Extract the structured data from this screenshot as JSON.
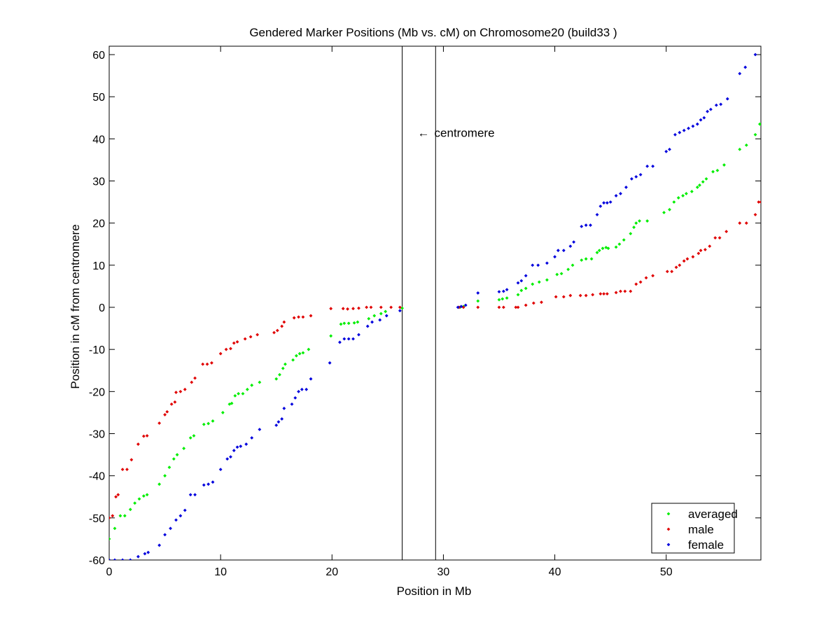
{
  "chart_data": {
    "type": "scatter",
    "title": "Gendered Marker Positions (Mb vs. cM) on Chromosome20 (build33 )",
    "xlabel": "Position in Mb",
    "ylabel": "Position in cM from centromere",
    "xlim": [
      0,
      58.5
    ],
    "ylim": [
      -60,
      62
    ],
    "xticks": [
      0,
      10,
      20,
      30,
      40,
      50
    ],
    "yticks": [
      -60,
      -50,
      -40,
      -30,
      -20,
      -10,
      0,
      10,
      20,
      30,
      40,
      50,
      60
    ],
    "grid": false,
    "legend_position": "bottom-right",
    "centromere": {
      "label": "centromere",
      "arrow": "←",
      "bounds_mb": [
        26.3,
        29.3
      ],
      "label_y_cm": 41.5
    },
    "series": [
      {
        "name": "averaged",
        "color": "#00ee00",
        "points": [
          [
            0.0,
            -55.0
          ],
          [
            0.5,
            -52.5
          ],
          [
            1.0,
            -49.5
          ],
          [
            1.4,
            -49.5
          ],
          [
            1.9,
            -48.0
          ],
          [
            2.3,
            -46.5
          ],
          [
            2.7,
            -45.5
          ],
          [
            3.1,
            -44.8
          ],
          [
            3.4,
            -44.5
          ],
          [
            4.5,
            -42.0
          ],
          [
            5.0,
            -40.0
          ],
          [
            5.4,
            -38.0
          ],
          [
            5.8,
            -36.0
          ],
          [
            6.1,
            -35.0
          ],
          [
            6.7,
            -33.5
          ],
          [
            7.3,
            -31.0
          ],
          [
            7.6,
            -30.5
          ],
          [
            8.5,
            -27.8
          ],
          [
            8.9,
            -27.6
          ],
          [
            9.3,
            -27.0
          ],
          [
            10.2,
            -25.0
          ],
          [
            10.8,
            -23.0
          ],
          [
            11.0,
            -22.8
          ],
          [
            11.3,
            -21.0
          ],
          [
            11.6,
            -20.5
          ],
          [
            12.0,
            -20.5
          ],
          [
            12.4,
            -19.5
          ],
          [
            12.8,
            -18.5
          ],
          [
            13.5,
            -17.8
          ],
          [
            15.0,
            -17.0
          ],
          [
            15.3,
            -16.0
          ],
          [
            15.6,
            -14.5
          ],
          [
            15.8,
            -13.5
          ],
          [
            16.5,
            -12.5
          ],
          [
            16.8,
            -11.5
          ],
          [
            17.1,
            -11.0
          ],
          [
            17.4,
            -10.8
          ],
          [
            17.9,
            -10.0
          ],
          [
            19.9,
            -6.8
          ],
          [
            20.8,
            -4.0
          ],
          [
            21.1,
            -3.8
          ],
          [
            21.5,
            -3.8
          ],
          [
            22.0,
            -3.7
          ],
          [
            22.3,
            -3.5
          ],
          [
            23.3,
            -2.7
          ],
          [
            23.8,
            -2.0
          ],
          [
            24.4,
            -1.5
          ],
          [
            24.8,
            -1.0
          ],
          [
            26.3,
            -0.2
          ],
          [
            31.5,
            0.0
          ],
          [
            31.8,
            0.2
          ],
          [
            33.1,
            1.5
          ],
          [
            35.0,
            1.8
          ],
          [
            35.3,
            2.0
          ],
          [
            35.7,
            2.2
          ],
          [
            36.7,
            3.0
          ],
          [
            37.0,
            4.0
          ],
          [
            37.4,
            4.5
          ],
          [
            38.0,
            5.5
          ],
          [
            38.6,
            6.0
          ],
          [
            39.3,
            6.5
          ],
          [
            40.2,
            7.8
          ],
          [
            40.6,
            8.0
          ],
          [
            41.2,
            9.0
          ],
          [
            41.6,
            10.0
          ],
          [
            42.4,
            11.2
          ],
          [
            42.8,
            11.5
          ],
          [
            43.3,
            11.5
          ],
          [
            43.8,
            13.0
          ],
          [
            44.0,
            13.5
          ],
          [
            44.3,
            14.0
          ],
          [
            44.6,
            14.2
          ],
          [
            44.8,
            14.0
          ],
          [
            45.5,
            14.3
          ],
          [
            45.8,
            15.0
          ],
          [
            46.2,
            16.0
          ],
          [
            46.8,
            17.5
          ],
          [
            47.1,
            19.0
          ],
          [
            47.3,
            20.0
          ],
          [
            47.6,
            20.5
          ],
          [
            48.3,
            20.5
          ],
          [
            49.8,
            22.5
          ],
          [
            50.3,
            23.2
          ],
          [
            50.7,
            25.0
          ],
          [
            51.1,
            26.0
          ],
          [
            51.5,
            26.5
          ],
          [
            51.8,
            27.0
          ],
          [
            52.3,
            27.5
          ],
          [
            52.8,
            28.5
          ],
          [
            53.0,
            29.0
          ],
          [
            53.3,
            29.8
          ],
          [
            53.6,
            30.5
          ],
          [
            54.2,
            32.2
          ],
          [
            54.6,
            32.5
          ],
          [
            55.2,
            33.8
          ],
          [
            56.6,
            37.5
          ],
          [
            57.2,
            38.5
          ],
          [
            58.0,
            41.0
          ],
          [
            58.4,
            43.5
          ],
          [
            58.5,
            43.5
          ]
        ]
      },
      {
        "name": "male",
        "color": "#e00000",
        "points": [
          [
            0.0,
            -50.0
          ],
          [
            0.3,
            -49.5
          ],
          [
            0.6,
            -45.0
          ],
          [
            0.8,
            -44.5
          ],
          [
            1.2,
            -38.5
          ],
          [
            1.6,
            -38.5
          ],
          [
            2.0,
            -36.2
          ],
          [
            2.6,
            -32.5
          ],
          [
            3.1,
            -30.6
          ],
          [
            3.4,
            -30.5
          ],
          [
            4.5,
            -27.5
          ],
          [
            5.0,
            -25.5
          ],
          [
            5.2,
            -24.8
          ],
          [
            5.6,
            -23.0
          ],
          [
            5.9,
            -22.5
          ],
          [
            6.0,
            -20.2
          ],
          [
            6.4,
            -20.0
          ],
          [
            6.8,
            -19.5
          ],
          [
            7.4,
            -17.8
          ],
          [
            7.7,
            -16.8
          ],
          [
            8.4,
            -13.5
          ],
          [
            8.8,
            -13.5
          ],
          [
            9.2,
            -13.2
          ],
          [
            10.0,
            -11.0
          ],
          [
            10.5,
            -10.0
          ],
          [
            10.9,
            -9.8
          ],
          [
            11.2,
            -8.5
          ],
          [
            11.5,
            -8.2
          ],
          [
            12.2,
            -7.5
          ],
          [
            12.7,
            -7.0
          ],
          [
            13.3,
            -6.5
          ],
          [
            14.8,
            -6.0
          ],
          [
            15.1,
            -5.5
          ],
          [
            15.5,
            -4.5
          ],
          [
            15.7,
            -3.5
          ],
          [
            16.6,
            -2.5
          ],
          [
            17.0,
            -2.3
          ],
          [
            17.4,
            -2.3
          ],
          [
            18.1,
            -2.0
          ],
          [
            19.9,
            -0.3
          ],
          [
            21.0,
            -0.3
          ],
          [
            21.4,
            -0.4
          ],
          [
            21.9,
            -0.3
          ],
          [
            22.4,
            -0.2
          ],
          [
            23.1,
            0.0
          ],
          [
            23.5,
            0.0
          ],
          [
            24.4,
            0.0
          ],
          [
            25.3,
            0.0
          ],
          [
            26.1,
            0.0
          ],
          [
            31.4,
            0.0
          ],
          [
            31.8,
            0.0
          ],
          [
            33.1,
            0.0
          ],
          [
            35.0,
            0.0
          ],
          [
            35.4,
            0.0
          ],
          [
            36.5,
            0.0
          ],
          [
            36.7,
            0.0
          ],
          [
            37.4,
            0.5
          ],
          [
            38.1,
            1.0
          ],
          [
            38.8,
            1.2
          ],
          [
            40.1,
            2.5
          ],
          [
            40.8,
            2.5
          ],
          [
            41.4,
            2.8
          ],
          [
            42.3,
            2.8
          ],
          [
            42.8,
            2.8
          ],
          [
            43.4,
            3.0
          ],
          [
            44.1,
            3.2
          ],
          [
            44.4,
            3.2
          ],
          [
            44.7,
            3.2
          ],
          [
            45.5,
            3.5
          ],
          [
            45.9,
            3.8
          ],
          [
            46.3,
            3.8
          ],
          [
            46.8,
            3.8
          ],
          [
            47.3,
            5.5
          ],
          [
            47.7,
            6.0
          ],
          [
            48.2,
            7.0
          ],
          [
            48.8,
            7.5
          ],
          [
            50.1,
            8.5
          ],
          [
            50.5,
            8.5
          ],
          [
            50.9,
            9.5
          ],
          [
            51.2,
            10.0
          ],
          [
            51.6,
            11.0
          ],
          [
            51.9,
            11.5
          ],
          [
            52.4,
            12.0
          ],
          [
            52.9,
            12.8
          ],
          [
            53.1,
            13.5
          ],
          [
            53.5,
            13.7
          ],
          [
            53.9,
            14.5
          ],
          [
            54.4,
            16.5
          ],
          [
            54.8,
            16.5
          ],
          [
            55.4,
            18.0
          ],
          [
            56.6,
            20.0
          ],
          [
            57.2,
            20.0
          ],
          [
            58.0,
            22.0
          ],
          [
            58.3,
            25.0
          ],
          [
            58.5,
            25.0
          ]
        ]
      },
      {
        "name": "female",
        "color": "#0000dd",
        "points": [
          [
            0.0,
            -60.0
          ],
          [
            0.5,
            -60.0
          ],
          [
            1.2,
            -60.0
          ],
          [
            1.9,
            -60.0
          ],
          [
            2.6,
            -59.2
          ],
          [
            3.2,
            -58.5
          ],
          [
            3.5,
            -58.2
          ],
          [
            4.5,
            -56.5
          ],
          [
            5.0,
            -54.0
          ],
          [
            5.5,
            -52.5
          ],
          [
            6.0,
            -50.5
          ],
          [
            6.4,
            -49.5
          ],
          [
            6.8,
            -48.2
          ],
          [
            7.3,
            -44.5
          ],
          [
            7.7,
            -44.5
          ],
          [
            8.5,
            -42.2
          ],
          [
            8.9,
            -42.0
          ],
          [
            9.3,
            -41.5
          ],
          [
            10.0,
            -38.5
          ],
          [
            10.6,
            -36.0
          ],
          [
            10.9,
            -35.5
          ],
          [
            11.2,
            -34.0
          ],
          [
            11.5,
            -33.2
          ],
          [
            11.8,
            -33.0
          ],
          [
            12.3,
            -32.5
          ],
          [
            12.8,
            -31.0
          ],
          [
            13.5,
            -29.0
          ],
          [
            15.0,
            -28.0
          ],
          [
            15.2,
            -27.2
          ],
          [
            15.5,
            -26.5
          ],
          [
            15.7,
            -24.0
          ],
          [
            16.4,
            -23.0
          ],
          [
            16.7,
            -21.5
          ],
          [
            17.0,
            -20.0
          ],
          [
            17.3,
            -19.5
          ],
          [
            17.7,
            -19.5
          ],
          [
            18.1,
            -17.0
          ],
          [
            19.8,
            -13.2
          ],
          [
            20.7,
            -8.3
          ],
          [
            21.1,
            -7.5
          ],
          [
            21.5,
            -7.5
          ],
          [
            21.9,
            -7.5
          ],
          [
            22.4,
            -6.5
          ],
          [
            23.2,
            -4.5
          ],
          [
            23.6,
            -3.5
          ],
          [
            24.3,
            -3.0
          ],
          [
            24.9,
            -2.0
          ],
          [
            26.1,
            -0.8
          ],
          [
            31.3,
            0.0
          ],
          [
            31.6,
            0.2
          ],
          [
            32.0,
            0.5
          ],
          [
            33.1,
            3.4
          ],
          [
            35.0,
            3.7
          ],
          [
            35.4,
            3.8
          ],
          [
            35.7,
            4.2
          ],
          [
            36.7,
            5.8
          ],
          [
            37.0,
            6.3
          ],
          [
            37.4,
            7.5
          ],
          [
            38.0,
            10.0
          ],
          [
            38.5,
            10.0
          ],
          [
            39.3,
            10.5
          ],
          [
            40.0,
            12.0
          ],
          [
            40.3,
            13.5
          ],
          [
            40.8,
            13.5
          ],
          [
            41.4,
            14.5
          ],
          [
            41.7,
            15.5
          ],
          [
            42.4,
            19.2
          ],
          [
            42.8,
            19.5
          ],
          [
            43.2,
            19.5
          ],
          [
            43.8,
            22.0
          ],
          [
            44.1,
            24.0
          ],
          [
            44.4,
            24.8
          ],
          [
            44.7,
            24.8
          ],
          [
            45.0,
            25.0
          ],
          [
            45.5,
            26.5
          ],
          [
            45.9,
            27.0
          ],
          [
            46.4,
            28.5
          ],
          [
            46.9,
            30.5
          ],
          [
            47.3,
            31.0
          ],
          [
            47.7,
            31.5
          ],
          [
            48.3,
            33.5
          ],
          [
            48.8,
            33.5
          ],
          [
            50.0,
            37.0
          ],
          [
            50.3,
            37.5
          ],
          [
            50.8,
            41.0
          ],
          [
            51.2,
            41.5
          ],
          [
            51.6,
            42.0
          ],
          [
            52.0,
            42.5
          ],
          [
            52.4,
            43.0
          ],
          [
            52.8,
            43.5
          ],
          [
            53.1,
            44.5
          ],
          [
            53.4,
            45.0
          ],
          [
            53.7,
            46.5
          ],
          [
            54.0,
            47.0
          ],
          [
            54.5,
            48.0
          ],
          [
            54.9,
            48.2
          ],
          [
            55.5,
            49.5
          ],
          [
            56.6,
            55.5
          ],
          [
            57.1,
            57.0
          ],
          [
            58.0,
            60.0
          ]
        ]
      }
    ]
  }
}
